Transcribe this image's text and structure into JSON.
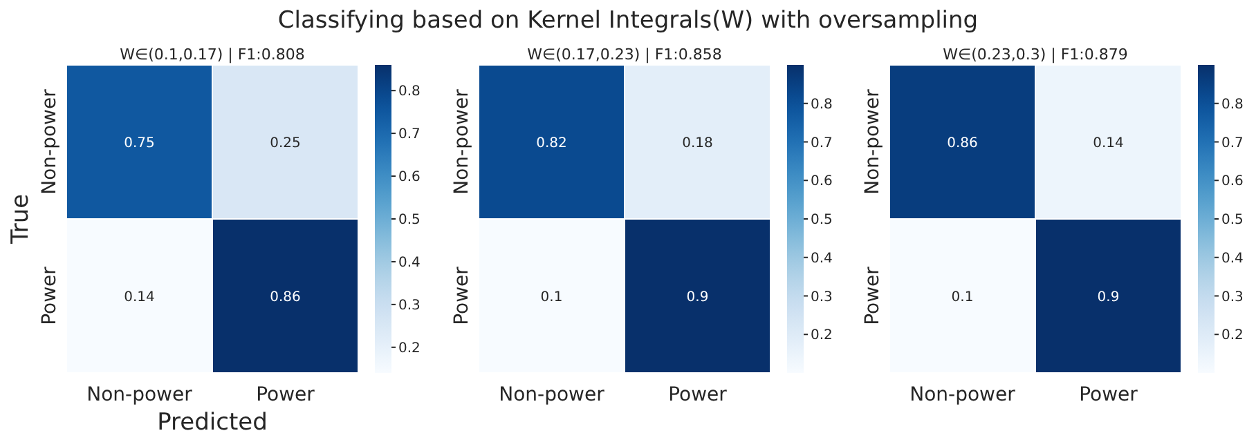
{
  "chart_data": [
    {
      "type": "heatmap",
      "title": "Classifying based on Kernel Integrals(W) with oversampling",
      "subtitle": "W∈(0.1,0.17) | F1:0.808",
      "xlabel": "Predicted",
      "ylabel": "True",
      "categories": [
        "Non-power",
        "Power"
      ],
      "y_categories": [
        "Non-power",
        "Power"
      ],
      "cells": [
        [
          0.75,
          0.25
        ],
        [
          0.14,
          0.86
        ]
      ],
      "data_labels": true,
      "clim": [
        0.14,
        0.86
      ],
      "cticks": [
        0.2,
        0.3,
        0.4,
        0.5,
        0.6,
        0.7,
        0.8
      ]
    },
    {
      "type": "heatmap",
      "subtitle": "W∈(0.17,0.23) | F1:0.858",
      "categories": [
        "Non-power",
        "Power"
      ],
      "y_categories": [
        "Non-power",
        "Power"
      ],
      "cells": [
        [
          0.82,
          0.18
        ],
        [
          0.1,
          0.9
        ]
      ],
      "data_labels": true,
      "clim": [
        0.1,
        0.9
      ],
      "cticks": [
        0.2,
        0.3,
        0.4,
        0.5,
        0.6,
        0.7,
        0.8
      ]
    },
    {
      "type": "heatmap",
      "subtitle": "W∈(0.23,0.3) | F1:0.879",
      "categories": [
        "Non-power",
        "Power"
      ],
      "y_categories": [
        "Non-power",
        "Power"
      ],
      "cells": [
        [
          0.86,
          0.14
        ],
        [
          0.1,
          0.9
        ]
      ],
      "data_labels": true,
      "clim": [
        0.1,
        0.9
      ],
      "cticks": [
        0.2,
        0.3,
        0.4,
        0.5,
        0.6,
        0.7,
        0.8
      ]
    }
  ]
}
